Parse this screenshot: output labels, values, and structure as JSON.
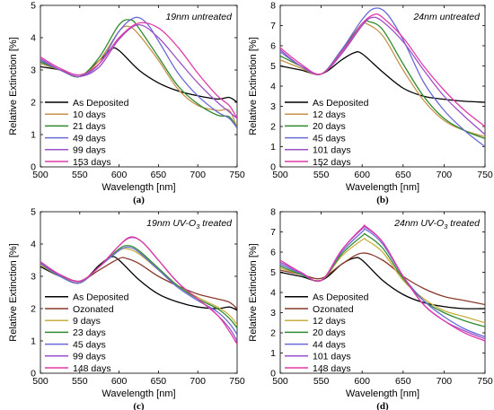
{
  "chart_data": [
    {
      "type": "line",
      "panel_label": "(a)",
      "title": "19nm untreated",
      "xlabel": "Wavelength [nm]",
      "ylabel": "Relative Extinction [%]",
      "xlim": [
        500,
        750
      ],
      "ylim": [
        0,
        5
      ],
      "xticks": [
        500,
        550,
        600,
        650,
        700,
        750
      ],
      "yticks": [
        0,
        1,
        2,
        3,
        4,
        5
      ],
      "legend_position": "bottom-left",
      "series": [
        {
          "name": "As Deposited",
          "color": "#000000",
          "x": [
            500,
            525,
            550,
            575,
            590,
            600,
            625,
            650,
            675,
            700,
            725,
            740,
            750
          ],
          "y": [
            3.1,
            3.0,
            2.8,
            3.3,
            3.65,
            3.6,
            3.0,
            2.6,
            2.35,
            2.2,
            2.1,
            2.15,
            2.0
          ]
        },
        {
          "name": "10 days",
          "color": "#c8924a",
          "x": [
            500,
            525,
            550,
            575,
            600,
            612,
            625,
            650,
            675,
            700,
            725,
            740,
            750
          ],
          "y": [
            3.2,
            3.0,
            2.8,
            3.3,
            4.2,
            4.35,
            4.1,
            3.3,
            2.4,
            1.9,
            1.75,
            1.75,
            1.2
          ]
        },
        {
          "name": "21 days",
          "color": "#2e8b2e",
          "x": [
            500,
            525,
            550,
            575,
            600,
            615,
            625,
            650,
            675,
            700,
            725,
            740,
            750
          ],
          "y": [
            3.25,
            3.0,
            2.8,
            3.4,
            4.4,
            4.55,
            4.3,
            3.4,
            2.5,
            1.95,
            1.6,
            1.55,
            1.2
          ]
        },
        {
          "name": "49 days",
          "color": "#6a6ad6",
          "x": [
            500,
            525,
            550,
            575,
            600,
            620,
            635,
            650,
            675,
            700,
            725,
            740,
            750
          ],
          "y": [
            3.3,
            3.0,
            2.8,
            3.2,
            4.2,
            4.62,
            4.45,
            3.9,
            2.9,
            2.2,
            1.7,
            1.5,
            1.2
          ]
        },
        {
          "name": "99 days",
          "color": "#9a50c8",
          "x": [
            500,
            525,
            550,
            575,
            600,
            625,
            650,
            675,
            700,
            725,
            740,
            750
          ],
          "y": [
            3.35,
            3.0,
            2.8,
            3.1,
            3.95,
            4.4,
            4.0,
            3.3,
            2.6,
            2.0,
            1.7,
            1.5
          ]
        },
        {
          "name": "153 days",
          "color": "#e03aa8",
          "x": [
            500,
            525,
            550,
            575,
            600,
            625,
            650,
            675,
            700,
            725,
            740,
            750
          ],
          "y": [
            3.4,
            3.05,
            2.85,
            3.2,
            4.0,
            4.45,
            4.3,
            3.7,
            2.9,
            2.2,
            1.9,
            1.5
          ]
        }
      ]
    },
    {
      "type": "line",
      "panel_label": "(b)",
      "title": "24nm untreated",
      "xlabel": "Wavelength [nm]",
      "ylabel": "Relative Extinction [%]",
      "xlim": [
        500,
        750
      ],
      "ylim": [
        0,
        8
      ],
      "xticks": [
        500,
        550,
        600,
        650,
        700,
        750
      ],
      "yticks": [
        0,
        1,
        2,
        3,
        4,
        5,
        6,
        7,
        8
      ],
      "legend_position": "bottom-left",
      "series": [
        {
          "name": "As Deposited",
          "color": "#000000",
          "x": [
            500,
            525,
            550,
            575,
            590,
            600,
            625,
            650,
            675,
            700,
            725,
            750
          ],
          "y": [
            5.0,
            4.8,
            4.6,
            5.3,
            5.65,
            5.6,
            4.7,
            3.9,
            3.5,
            3.35,
            3.25,
            3.2
          ]
        },
        {
          "name": "12 days",
          "color": "#c8924a",
          "x": [
            500,
            525,
            550,
            575,
            600,
            605,
            625,
            650,
            675,
            700,
            725,
            750
          ],
          "y": [
            5.3,
            4.9,
            4.6,
            5.7,
            7.0,
            7.1,
            6.5,
            4.8,
            3.3,
            2.3,
            1.8,
            1.5
          ]
        },
        {
          "name": "20 days",
          "color": "#2e8b2e",
          "x": [
            500,
            525,
            550,
            575,
            600,
            608,
            625,
            650,
            675,
            700,
            725,
            750
          ],
          "y": [
            5.5,
            5.0,
            4.6,
            5.8,
            7.1,
            7.2,
            6.8,
            5.1,
            3.5,
            2.4,
            1.8,
            1.4
          ]
        },
        {
          "name": "45 days",
          "color": "#6a6ad6",
          "x": [
            500,
            525,
            550,
            575,
            600,
            615,
            630,
            650,
            675,
            700,
            725,
            750
          ],
          "y": [
            5.7,
            5.0,
            4.6,
            5.8,
            7.3,
            7.85,
            7.6,
            6.3,
            4.2,
            2.8,
            1.8,
            1.0
          ]
        },
        {
          "name": "101 days",
          "color": "#9a50c8",
          "x": [
            500,
            525,
            550,
            575,
            600,
            612,
            625,
            650,
            675,
            700,
            725,
            750
          ],
          "y": [
            5.8,
            5.0,
            4.6,
            5.6,
            7.0,
            7.4,
            7.2,
            6.2,
            4.8,
            3.5,
            2.5,
            1.6
          ]
        },
        {
          "name": "152 days",
          "color": "#e03aa8",
          "x": [
            500,
            525,
            550,
            575,
            600,
            615,
            625,
            650,
            675,
            700,
            725,
            750
          ],
          "y": [
            5.9,
            5.1,
            4.6,
            5.7,
            7.1,
            7.55,
            7.4,
            6.4,
            5.0,
            3.8,
            2.8,
            2.0
          ]
        }
      ]
    },
    {
      "type": "line",
      "panel_label": "(c)",
      "title": "19nm UV-O",
      "title_subscript": "3",
      "title_suffix": " treated",
      "xlabel": "Wavelength [nm]",
      "ylabel": "Relative Extinction [%]",
      "xlim": [
        500,
        750
      ],
      "ylim": [
        0,
        5
      ],
      "xticks": [
        500,
        550,
        600,
        650,
        700,
        750
      ],
      "yticks": [
        0,
        1,
        2,
        3,
        4,
        5
      ],
      "legend_position": "bottom-left",
      "series": [
        {
          "name": "As Deposited",
          "color": "#000000",
          "x": [
            500,
            525,
            550,
            575,
            590,
            600,
            625,
            650,
            675,
            700,
            725,
            740,
            750
          ],
          "y": [
            3.3,
            3.0,
            2.8,
            3.35,
            3.6,
            3.5,
            2.9,
            2.45,
            2.2,
            2.05,
            2.0,
            2.05,
            1.95
          ]
        },
        {
          "name": "Ozonated",
          "color": "#8b3a2e",
          "x": [
            500,
            525,
            550,
            575,
            600,
            610,
            625,
            650,
            675,
            700,
            725,
            740,
            750
          ],
          "y": [
            3.4,
            3.05,
            2.85,
            3.2,
            3.55,
            3.55,
            3.4,
            3.0,
            2.7,
            2.45,
            2.3,
            2.2,
            2.0
          ]
        },
        {
          "name": "9 days",
          "color": "#c8b040",
          "x": [
            500,
            525,
            550,
            575,
            600,
            610,
            625,
            650,
            675,
            700,
            725,
            740,
            750
          ],
          "y": [
            3.35,
            3.0,
            2.8,
            3.3,
            3.8,
            3.85,
            3.7,
            3.2,
            2.7,
            2.35,
            2.05,
            1.8,
            1.5
          ]
        },
        {
          "name": "23 days",
          "color": "#2e8b2e",
          "x": [
            500,
            525,
            550,
            575,
            600,
            612,
            625,
            650,
            675,
            700,
            725,
            740,
            750
          ],
          "y": [
            3.4,
            3.0,
            2.8,
            3.3,
            3.85,
            3.95,
            3.8,
            3.25,
            2.7,
            2.3,
            2.0,
            1.7,
            1.4
          ]
        },
        {
          "name": "45 days",
          "color": "#6a6ad6",
          "x": [
            500,
            525,
            550,
            575,
            600,
            612,
            625,
            650,
            675,
            700,
            725,
            740,
            750
          ],
          "y": [
            3.4,
            3.0,
            2.8,
            3.3,
            3.8,
            3.9,
            3.75,
            3.2,
            2.65,
            2.25,
            1.9,
            1.55,
            1.2
          ]
        },
        {
          "name": "99 days",
          "color": "#9a50c8",
          "x": [
            500,
            525,
            550,
            575,
            600,
            615,
            630,
            650,
            675,
            700,
            725,
            740,
            750
          ],
          "y": [
            3.45,
            3.05,
            2.85,
            3.3,
            3.95,
            4.2,
            4.05,
            3.5,
            2.8,
            2.3,
            1.8,
            1.4,
            1.0
          ]
        },
        {
          "name": "148 days",
          "color": "#e03aa8",
          "x": [
            500,
            525,
            550,
            575,
            600,
            615,
            630,
            650,
            675,
            700,
            725,
            740,
            750
          ],
          "y": [
            3.45,
            3.05,
            2.85,
            3.3,
            3.95,
            4.22,
            4.05,
            3.5,
            2.8,
            2.3,
            1.8,
            1.3,
            0.9
          ]
        }
      ]
    },
    {
      "type": "line",
      "panel_label": "(d)",
      "title": "24nm UV-O",
      "title_subscript": "3",
      "title_suffix": " treated",
      "xlabel": "Wavelength [nm]",
      "ylabel": "Relative Extinction [%]",
      "xlim": [
        500,
        750
      ],
      "ylim": [
        0,
        8
      ],
      "xticks": [
        500,
        550,
        600,
        650,
        700,
        750
      ],
      "yticks": [
        0,
        1,
        2,
        3,
        4,
        5,
        6,
        7,
        8
      ],
      "legend_position": "bottom-left",
      "series": [
        {
          "name": "As Deposited",
          "color": "#000000",
          "x": [
            500,
            525,
            550,
            575,
            590,
            600,
            625,
            650,
            675,
            700,
            725,
            750
          ],
          "y": [
            5.0,
            4.8,
            4.6,
            5.4,
            5.7,
            5.6,
            4.6,
            3.9,
            3.5,
            3.3,
            3.2,
            3.2
          ]
        },
        {
          "name": "Ozonated",
          "color": "#8b3a2e",
          "x": [
            500,
            525,
            550,
            575,
            600,
            625,
            650,
            675,
            700,
            725,
            750
          ],
          "y": [
            5.1,
            4.9,
            4.7,
            5.4,
            5.95,
            5.6,
            4.8,
            4.2,
            3.8,
            3.6,
            3.4
          ]
        },
        {
          "name": "12 days",
          "color": "#c8b040",
          "x": [
            500,
            525,
            550,
            575,
            600,
            605,
            625,
            650,
            675,
            700,
            725,
            750
          ],
          "y": [
            5.2,
            4.9,
            4.6,
            5.8,
            6.6,
            6.6,
            6.0,
            4.6,
            3.7,
            3.1,
            2.8,
            2.5
          ]
        },
        {
          "name": "20 days",
          "color": "#2e8b2e",
          "x": [
            500,
            525,
            550,
            575,
            600,
            605,
            625,
            650,
            675,
            700,
            725,
            750
          ],
          "y": [
            5.3,
            4.9,
            4.6,
            5.9,
            6.8,
            6.85,
            6.2,
            4.7,
            3.6,
            3.0,
            2.6,
            2.3
          ]
        },
        {
          "name": "44 days",
          "color": "#6a6ad6",
          "x": [
            500,
            525,
            550,
            575,
            600,
            605,
            625,
            650,
            675,
            700,
            725,
            750
          ],
          "y": [
            5.4,
            4.95,
            4.6,
            6.0,
            7.0,
            7.1,
            6.4,
            4.8,
            3.6,
            2.8,
            2.2,
            1.8
          ]
        },
        {
          "name": "101 days",
          "color": "#9a50c8",
          "x": [
            500,
            525,
            550,
            575,
            600,
            605,
            625,
            650,
            675,
            700,
            725,
            750
          ],
          "y": [
            5.5,
            5.0,
            4.6,
            6.1,
            7.15,
            7.2,
            6.5,
            4.8,
            3.4,
            2.6,
            2.1,
            1.7
          ]
        },
        {
          "name": "148 days",
          "color": "#e03aa8",
          "x": [
            500,
            525,
            550,
            575,
            600,
            605,
            625,
            650,
            675,
            700,
            725,
            750
          ],
          "y": [
            5.6,
            5.0,
            4.6,
            6.1,
            7.2,
            7.25,
            6.5,
            4.8,
            3.4,
            2.6,
            2.0,
            1.6
          ]
        }
      ]
    }
  ]
}
